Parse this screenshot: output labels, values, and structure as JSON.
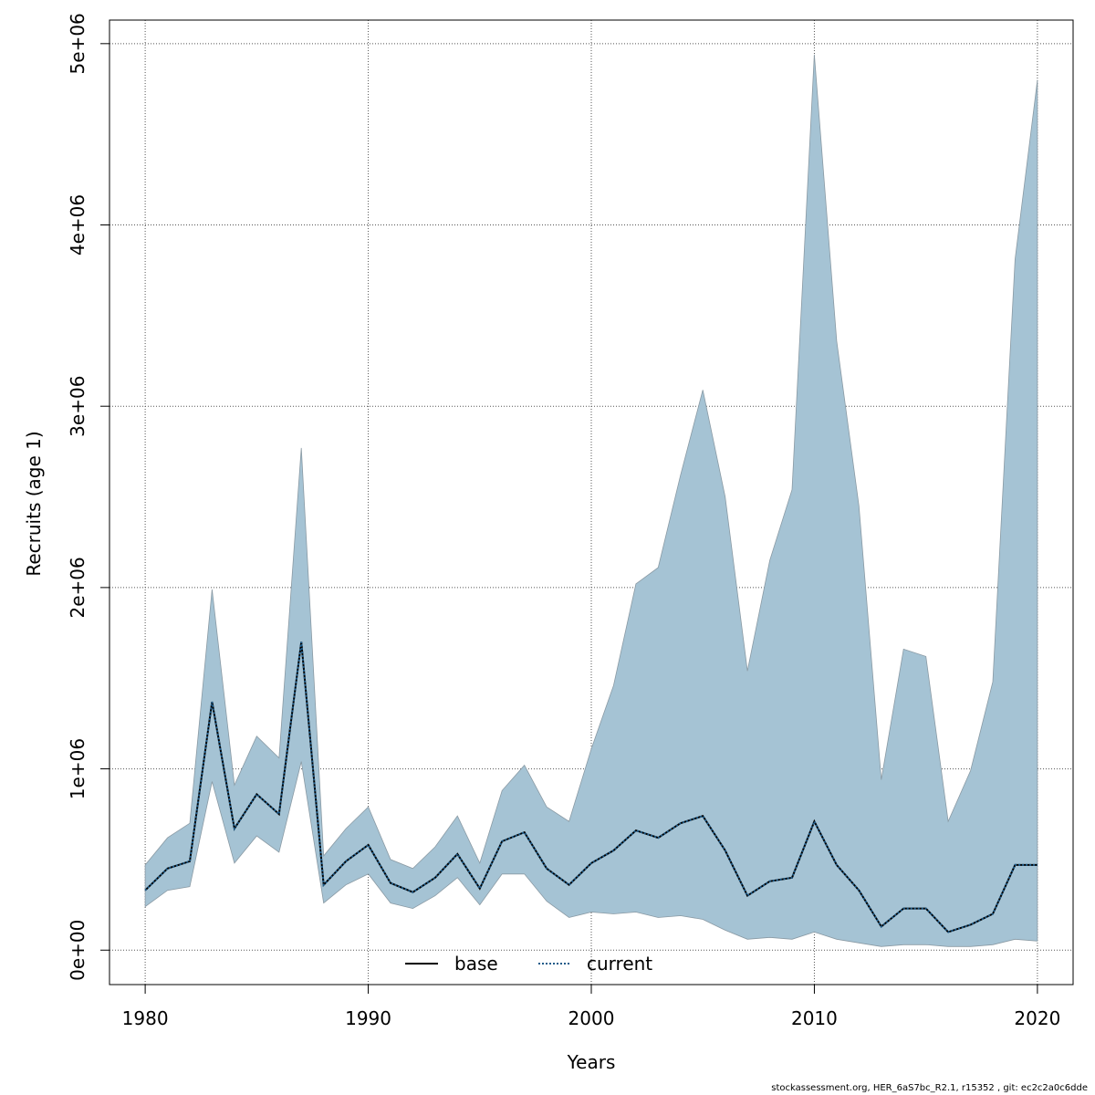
{
  "chart_data": {
    "type": "area",
    "title": "",
    "xlabel": "Years",
    "ylabel": "Recruits (age 1)",
    "xlim": [
      1978.4,
      2021.6
    ],
    "ylim": [
      -190000,
      5130000
    ],
    "x_ticks": [
      1980,
      1990,
      2000,
      2010,
      2020
    ],
    "x_tick_labels": [
      "1980",
      "1990",
      "2000",
      "2010",
      "2020"
    ],
    "y_ticks": [
      0,
      1000000,
      2000000,
      3000000,
      4000000,
      5000000
    ],
    "y_tick_labels": [
      "0e+00",
      "1e+06",
      "2e+06",
      "3e+06",
      "4e+06",
      "5e+06"
    ],
    "grid": true,
    "legend_position": "bottom-center",
    "x": [
      1980,
      1981,
      1982,
      1983,
      1984,
      1985,
      1986,
      1987,
      1988,
      1989,
      1990,
      1991,
      1992,
      1993,
      1994,
      1995,
      1996,
      1997,
      1998,
      1999,
      2000,
      2001,
      2002,
      2003,
      2004,
      2005,
      2006,
      2007,
      2008,
      2009,
      2010,
      2011,
      2012,
      2013,
      2014,
      2015,
      2016,
      2017,
      2018,
      2019,
      2020
    ],
    "band": {
      "color": "#a5c3d4",
      "upper": [
        470000,
        620000,
        700000,
        1990000,
        910000,
        1180000,
        1060000,
        2770000,
        520000,
        670000,
        790000,
        500000,
        450000,
        570000,
        740000,
        480000,
        880000,
        1020000,
        790000,
        710000,
        1110000,
        1460000,
        2020000,
        2110000,
        2620000,
        3090000,
        2500000,
        1540000,
        2150000,
        2540000,
        4940000,
        3360000,
        2450000,
        940000,
        1660000,
        1620000,
        710000,
        990000,
        1480000,
        3810000,
        4800000
      ],
      "lower": [
        240000,
        330000,
        350000,
        930000,
        480000,
        630000,
        540000,
        1040000,
        260000,
        360000,
        420000,
        260000,
        230000,
        300000,
        400000,
        250000,
        420000,
        420000,
        270000,
        180000,
        210000,
        200000,
        210000,
        180000,
        190000,
        170000,
        110000,
        60000,
        70000,
        60000,
        100000,
        60000,
        40000,
        20000,
        30000,
        30000,
        20000,
        20000,
        30000,
        60000,
        50000
      ]
    },
    "series": [
      {
        "name": "base",
        "color": "#000000",
        "style": "solid",
        "values": [
          330000,
          450000,
          490000,
          1370000,
          670000,
          860000,
          750000,
          1700000,
          360000,
          490000,
          580000,
          370000,
          320000,
          400000,
          530000,
          340000,
          600000,
          650000,
          450000,
          360000,
          480000,
          550000,
          660000,
          620000,
          700000,
          740000,
          550000,
          300000,
          380000,
          400000,
          710000,
          470000,
          330000,
          130000,
          230000,
          230000,
          100000,
          140000,
          200000,
          470000,
          470000
        ]
      },
      {
        "name": "current",
        "color": "#1f5c8a",
        "style": "dotted",
        "values": [
          330000,
          450000,
          490000,
          1370000,
          670000,
          860000,
          750000,
          1700000,
          360000,
          490000,
          580000,
          370000,
          320000,
          400000,
          530000,
          340000,
          600000,
          650000,
          450000,
          360000,
          480000,
          550000,
          660000,
          620000,
          700000,
          740000,
          550000,
          300000,
          380000,
          400000,
          710000,
          470000,
          330000,
          130000,
          230000,
          230000,
          100000,
          140000,
          200000,
          470000,
          470000
        ]
      }
    ]
  },
  "footer_text": "stockassessment.org, HER_6aS7bc_R2.1, r15352 , git: ec2c2a0c6dde"
}
